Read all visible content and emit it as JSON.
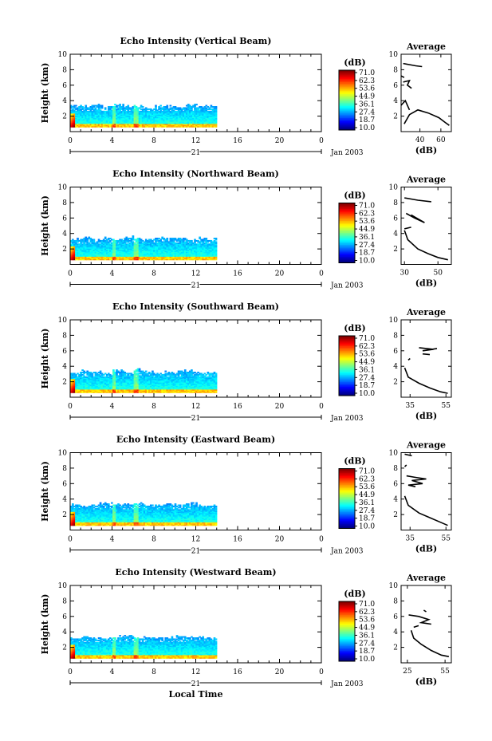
{
  "chart_data": [
    {
      "type": "heatmap",
      "title": "Echo Intensity (Vertical Beam)",
      "ylabel": "Height (km)",
      "x_ticks": [
        "0",
        "4",
        "8",
        "12",
        "16",
        "20",
        "0"
      ],
      "xlim": [
        0,
        24
      ],
      "ylim": [
        0,
        10
      ],
      "y_ticks": [
        "2",
        "4",
        "6",
        "8",
        "10"
      ],
      "day_label": "21",
      "date_label": "Jan 2003",
      "colorbar": {
        "unit": "(dB)",
        "ticks": [
          "71.0",
          "62.3",
          "53.6",
          "44.9",
          "36.1",
          "27.4",
          "18.7",
          "10.0"
        ]
      },
      "data_end_hour": 14,
      "echo_top_km": [
        3.3,
        3.2,
        3.3,
        3.1,
        3.4,
        3.2,
        3.3,
        3.0,
        3.2,
        3.3,
        3.1,
        3.4,
        3.2,
        3.3,
        3.1
      ],
      "profile": {
        "title": "Average",
        "xlabel": "(dB)",
        "x_ticks": [
          "40",
          "60"
        ],
        "xlim": [
          22,
          70
        ],
        "ylim": [
          0,
          10
        ],
        "y_ticks": [
          "2",
          "4",
          "6",
          "8",
          "10"
        ],
        "segments": [
          [
            [
              25,
              1.0
            ],
            [
              30,
              2.2
            ],
            [
              38,
              2.8
            ],
            [
              48,
              2.4
            ],
            [
              58,
              1.8
            ],
            [
              64,
              1.2
            ],
            [
              68,
              0.8
            ]
          ],
          [
            [
              22,
              3.4
            ],
            [
              26,
              4.0
            ],
            [
              30,
              2.8
            ]
          ],
          [
            [
              24,
              8.8
            ],
            [
              36,
              8.5
            ],
            [
              42,
              8.4
            ]
          ],
          [
            [
              24,
              6.4
            ],
            [
              30,
              6.6
            ],
            [
              28,
              6.0
            ],
            [
              32,
              5.6
            ]
          ],
          [
            [
              22,
              7.2
            ],
            [
              25,
              7.0
            ]
          ]
        ]
      }
    },
    {
      "type": "heatmap",
      "title": "Echo Intensity (Northward Beam)",
      "ylabel": "Height (km)",
      "x_ticks": [
        "0",
        "4",
        "8",
        "12",
        "16",
        "20",
        "0"
      ],
      "xlim": [
        0,
        24
      ],
      "ylim": [
        0,
        10
      ],
      "y_ticks": [
        "2",
        "4",
        "6",
        "8",
        "10"
      ],
      "day_label": "21",
      "date_label": "Jan 2003",
      "colorbar": {
        "unit": "(dB)",
        "ticks": [
          "71.0",
          "62.3",
          "53.6",
          "44.9",
          "36.1",
          "27.4",
          "18.7",
          "10.0"
        ]
      },
      "data_end_hour": 14,
      "echo_top_km": [
        3.2,
        3.4,
        3.1,
        3.3,
        3.2,
        3.5,
        3.3,
        3.1,
        3.4,
        3.2,
        3.3,
        3.1,
        3.3,
        3.2,
        3.4
      ],
      "profile": {
        "title": "Average",
        "xlabel": "(dB)",
        "x_ticks": [
          "30",
          "50"
        ],
        "xlim": [
          28,
          58
        ],
        "ylim": [
          0,
          10
        ],
        "y_ticks": [
          "2",
          "4",
          "6",
          "8",
          "10"
        ],
        "segments": [
          [
            [
              30,
              4.4
            ],
            [
              32,
              3.2
            ],
            [
              38,
              2.0
            ],
            [
              44,
              1.4
            ],
            [
              50,
              0.9
            ],
            [
              56,
              0.6
            ]
          ],
          [
            [
              30,
              8.6
            ],
            [
              38,
              8.3
            ],
            [
              46,
              8.1
            ]
          ],
          [
            [
              31,
              6.6
            ],
            [
              36,
              6.0
            ],
            [
              42,
              5.4
            ],
            [
              38,
              5.9
            ],
            [
              34,
              6.4
            ],
            [
              40,
              5.6
            ]
          ],
          [
            [
              30,
              4.6
            ],
            [
              34,
              4.8
            ]
          ]
        ]
      }
    },
    {
      "type": "heatmap",
      "title": "Echo Intensity (Southward Beam)",
      "ylabel": "Height (km)",
      "x_ticks": [
        "0",
        "4",
        "8",
        "12",
        "16",
        "20",
        "0"
      ],
      "xlim": [
        0,
        24
      ],
      "ylim": [
        0,
        10
      ],
      "y_ticks": [
        "2",
        "4",
        "6",
        "8",
        "10"
      ],
      "day_label": "21",
      "date_label": "Jan 2003",
      "colorbar": {
        "unit": "(dB)",
        "ticks": [
          "71.0",
          "62.3",
          "53.6",
          "44.9",
          "36.1",
          "27.4",
          "18.7",
          "10.0"
        ]
      },
      "data_end_hour": 14,
      "echo_top_km": [
        3.1,
        3.3,
        3.2,
        3.0,
        3.4,
        3.2,
        3.5,
        3.3,
        3.1,
        3.2,
        3.4,
        3.3,
        3.1,
        3.2,
        3.3
      ],
      "profile": {
        "title": "Average",
        "xlabel": "(dB)",
        "x_ticks": [
          "35",
          "55"
        ],
        "xlim": [
          30,
          58
        ],
        "ylim": [
          0,
          10
        ],
        "y_ticks": [
          "2",
          "4",
          "6",
          "8",
          "10"
        ],
        "segments": [
          [
            [
              32,
              3.8
            ],
            [
              34,
              2.6
            ],
            [
              40,
              1.8
            ],
            [
              46,
              1.2
            ],
            [
              52,
              0.7
            ],
            [
              56,
              0.5
            ]
          ],
          [
            [
              40,
              6.4
            ],
            [
              48,
              6.2
            ],
            [
              42,
              6.0
            ],
            [
              50,
              6.3
            ]
          ],
          [
            [
              42,
              5.6
            ],
            [
              46,
              5.5
            ]
          ],
          [
            [
              34,
              4.8
            ],
            [
              35,
              5.0
            ]
          ]
        ]
      }
    },
    {
      "type": "heatmap",
      "title": "Echo Intensity (Eastward Beam)",
      "ylabel": "Height (km)",
      "x_ticks": [
        "0",
        "4",
        "8",
        "12",
        "16",
        "20",
        "0"
      ],
      "xlim": [
        0,
        24
      ],
      "ylim": [
        0,
        10
      ],
      "y_ticks": [
        "2",
        "4",
        "6",
        "8",
        "10"
      ],
      "day_label": "21",
      "date_label": "Jan 2003",
      "colorbar": {
        "unit": "(dB)",
        "ticks": [
          "71.0",
          "62.3",
          "53.6",
          "44.9",
          "36.1",
          "27.4",
          "18.7",
          "10.0"
        ]
      },
      "data_end_hour": 14,
      "echo_top_km": [
        3.2,
        3.1,
        3.3,
        3.4,
        3.2,
        3.3,
        3.5,
        3.2,
        3.1,
        3.3,
        3.2,
        3.4,
        3.1,
        3.2,
        3.3
      ],
      "profile": {
        "title": "Average",
        "xlabel": "(dB)",
        "x_ticks": [
          "35",
          "55"
        ],
        "xlim": [
          30,
          58
        ],
        "ylim": [
          0,
          10
        ],
        "y_ticks": [
          "2",
          "4",
          "6",
          "8",
          "10"
        ],
        "segments": [
          [
            [
              32,
              4.4
            ],
            [
              34,
              3.2
            ],
            [
              40,
              2.2
            ],
            [
              46,
              1.6
            ],
            [
              52,
              1.0
            ],
            [
              56,
              0.6
            ]
          ],
          [
            [
              32,
              9.8
            ],
            [
              36,
              9.6
            ]
          ],
          [
            [
              33,
              7.0
            ],
            [
              38,
              6.8
            ],
            [
              44,
              6.6
            ],
            [
              36,
              6.4
            ],
            [
              42,
              6.0
            ],
            [
              34,
              5.8
            ],
            [
              38,
              5.6
            ]
          ],
          [
            [
              32,
              8.2
            ],
            [
              33,
              8.4
            ]
          ]
        ]
      }
    },
    {
      "type": "heatmap",
      "title": "Echo Intensity (Westward Beam)",
      "ylabel": "Height (km)",
      "x_ticks": [
        "0",
        "4",
        "8",
        "12",
        "16",
        "20",
        "0"
      ],
      "xlim": [
        0,
        24
      ],
      "ylim": [
        0,
        10
      ],
      "y_ticks": [
        "2",
        "4",
        "6",
        "8",
        "10"
      ],
      "day_label": "21",
      "date_label": "Jan 2003",
      "xlabel": "Local Time",
      "colorbar": {
        "unit": "(dB)",
        "ticks": [
          "71.0",
          "62.3",
          "53.6",
          "44.9",
          "36.1",
          "27.4",
          "18.7",
          "10.0"
        ]
      },
      "data_end_hour": 14,
      "echo_top_km": [
        3.1,
        3.3,
        3.2,
        3.1,
        3.3,
        3.4,
        3.2,
        3.3,
        3.1,
        3.2,
        3.4,
        3.2,
        3.3,
        3.1,
        3.2
      ],
      "profile": {
        "title": "Average",
        "xlabel": "(dB)",
        "x_ticks": [
          "25",
          "55"
        ],
        "xlim": [
          20,
          60
        ],
        "ylim": [
          0,
          10
        ],
        "y_ticks": [
          "2",
          "4",
          "6",
          "8",
          "10"
        ],
        "segments": [
          [
            [
              28,
              4.2
            ],
            [
              30,
              3.2
            ],
            [
              36,
              2.4
            ],
            [
              44,
              1.6
            ],
            [
              52,
              1.0
            ],
            [
              58,
              0.8
            ]
          ],
          [
            [
              26,
              6.2
            ],
            [
              34,
              6.0
            ],
            [
              42,
              5.6
            ],
            [
              36,
              5.2
            ],
            [
              44,
              5.0
            ]
          ],
          [
            [
              38,
              6.8
            ],
            [
              40,
              6.6
            ]
          ],
          [
            [
              30,
              4.6
            ],
            [
              34,
              4.8
            ]
          ]
        ]
      }
    }
  ]
}
